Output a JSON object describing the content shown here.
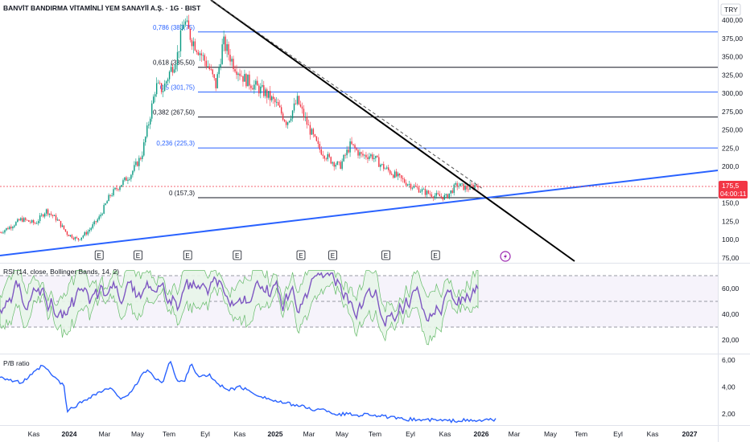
{
  "header": {
    "title": "BANVİT BANDIRMA VİTAMİNLİ YEM SANAYİİ A.Ş. · 1G · BIST",
    "currency": "TRY"
  },
  "price_badge": {
    "value": "175,5",
    "countdown": "04:00:11",
    "color": "#f23645"
  },
  "earnings_marker_label": "E",
  "colors": {
    "bull": "#089981",
    "bear": "#f23645",
    "fib_blue": "#2962ff",
    "fib_black": "#131722",
    "trend_blue": "#2962ff",
    "trend_black": "#000000",
    "rsi_line": "#7e57c2",
    "bb_fill": "#e8f5e9",
    "pb_line": "#2962ff",
    "flash_icon": "#9c27b0"
  },
  "icons": {
    "dividend_marker": "flash-icon"
  },
  "chart_data": [
    {
      "type": "candlestick",
      "title": "BANVİT BANDIRMA VİTAMİNLİ YEM SANAYİİ A.Ş. · 1G · BIST",
      "ylabel": "TRY",
      "yticks": [
        "400,00",
        "375,00",
        "350,00",
        "325,00",
        "300,00",
        "275,00",
        "250,00",
        "225,0",
        "200,0",
        "175,0",
        "150,0",
        "125,0",
        "100,0",
        "75,00"
      ],
      "ylim": [
        75,
        420
      ],
      "x_categories": [
        "Kas",
        "2024",
        "Mar",
        "May",
        "Tem",
        "Eyl",
        "Kas",
        "2025",
        "Mar",
        "May",
        "Tem",
        "Eyl",
        "Kas",
        "2026",
        "Mar",
        "May",
        "Tem",
        "Eyl",
        "Kas",
        "2027"
      ],
      "last_price": 175.5,
      "price_path": [
        [
          0,
          110
        ],
        [
          0.3,
          118
        ],
        [
          0.6,
          128
        ],
        [
          1.0,
          122
        ],
        [
          1.3,
          140
        ],
        [
          1.6,
          128
        ],
        [
          1.9,
          108
        ],
        [
          2.2,
          100
        ],
        [
          2.5,
          112
        ],
        [
          2.8,
          130
        ],
        [
          3.1,
          160
        ],
        [
          3.4,
          175
        ],
        [
          3.7,
          190
        ],
        [
          4.0,
          215
        ],
        [
          4.2,
          260
        ],
        [
          4.4,
          310
        ],
        [
          4.6,
          305
        ],
        [
          4.8,
          330
        ],
        [
          5.0,
          350
        ],
        [
          5.2,
          400
        ],
        [
          5.4,
          375
        ],
        [
          5.6,
          360
        ],
        [
          5.9,
          335
        ],
        [
          6.1,
          310
        ],
        [
          6.3,
          370
        ],
        [
          6.6,
          340
        ],
        [
          6.9,
          320
        ],
        [
          7.2,
          310
        ],
        [
          7.5,
          300
        ],
        [
          7.8,
          285
        ],
        [
          8.1,
          260
        ],
        [
          8.4,
          290
        ],
        [
          8.7,
          255
        ],
        [
          9.0,
          225
        ],
        [
          9.3,
          210
        ],
        [
          9.6,
          200
        ],
        [
          9.9,
          230
        ],
        [
          10.2,
          215
        ],
        [
          10.5,
          215
        ],
        [
          10.8,
          200
        ],
        [
          11.1,
          190
        ],
        [
          11.4,
          180
        ],
        [
          11.7,
          172
        ],
        [
          12.0,
          165
        ],
        [
          12.3,
          160
        ],
        [
          12.6,
          158
        ],
        [
          12.9,
          175
        ],
        [
          13.2,
          170
        ],
        [
          13.5,
          176
        ]
      ],
      "fibonacci": [
        {
          "label": "0,786 (383,75)",
          "value": 383.75,
          "color": "blue"
        },
        {
          "label": "0,618 (335,50)",
          "value": 335.5,
          "color": "black"
        },
        {
          "label": "0,5 (301,75)",
          "value": 301.75,
          "color": "blue"
        },
        {
          "label": "0,382 (267,50)",
          "value": 267.5,
          "color": "black"
        },
        {
          "label": "0,236 (225,3)",
          "value": 225.3,
          "color": "blue"
        },
        {
          "label": "0 (157,3)",
          "value": 157.3,
          "color": "black"
        }
      ],
      "earnings_x": [
        2.8,
        3.9,
        5.3,
        6.7,
        8.5,
        9.4,
        10.9,
        12.3
      ],
      "dividend_x": 14.0
    },
    {
      "type": "line",
      "title": "RSI (14, close, Bollinger Bands, 14, 2)",
      "yticks": [
        "60,00",
        "40,00",
        "20,00"
      ],
      "ylim": [
        14,
        74
      ],
      "bands": [
        70,
        50,
        30
      ]
    },
    {
      "type": "line",
      "title": "P/B ratio",
      "yticks": [
        "6,00",
        "4,00",
        "2,00"
      ],
      "ylim": [
        1.2,
        6.3
      ],
      "series": [
        {
          "values": [
            [
              0,
              4.8
            ],
            [
              0.3,
              4.5
            ],
            [
              0.6,
              4.3
            ],
            [
              0.9,
              4.9
            ],
            [
              1.2,
              5.6
            ],
            [
              1.5,
              4.8
            ],
            [
              1.8,
              4.1
            ],
            [
              1.9,
              2.2
            ],
            [
              2.2,
              2.7
            ],
            [
              2.5,
              3.2
            ],
            [
              2.8,
              3.6
            ],
            [
              3.1,
              3.9
            ],
            [
              3.4,
              3.2
            ],
            [
              3.7,
              3.5
            ],
            [
              4.0,
              4.9
            ],
            [
              4.2,
              5.3
            ],
            [
              4.4,
              4.5
            ],
            [
              4.6,
              4.4
            ],
            [
              4.8,
              6.0
            ],
            [
              5.0,
              4.4
            ],
            [
              5.2,
              4.4
            ],
            [
              5.4,
              5.8
            ],
            [
              5.6,
              4.7
            ],
            [
              5.9,
              4.9
            ],
            [
              6.2,
              4.1
            ],
            [
              6.5,
              3.8
            ],
            [
              6.8,
              4.0
            ],
            [
              7.1,
              3.6
            ],
            [
              7.4,
              3.3
            ],
            [
              7.7,
              3.0
            ],
            [
              8.0,
              2.8
            ],
            [
              8.3,
              2.7
            ],
            [
              8.6,
              2.5
            ],
            [
              8.9,
              2.3
            ],
            [
              9.2,
              2.3
            ],
            [
              9.5,
              1.95
            ],
            [
              9.8,
              2.0
            ],
            [
              10.1,
              1.9
            ],
            [
              10.4,
              2.0
            ],
            [
              10.7,
              1.85
            ],
            [
              11.0,
              1.75
            ],
            [
              11.3,
              1.6
            ],
            [
              11.6,
              1.6
            ],
            [
              11.9,
              1.55
            ],
            [
              12.2,
              1.55
            ],
            [
              12.5,
              1.5
            ],
            [
              12.8,
              1.48
            ],
            [
              13.1,
              1.52
            ],
            [
              13.4,
              1.45
            ],
            [
              13.7,
              1.55
            ],
            [
              14.0,
              1.55
            ]
          ]
        }
      ]
    }
  ]
}
